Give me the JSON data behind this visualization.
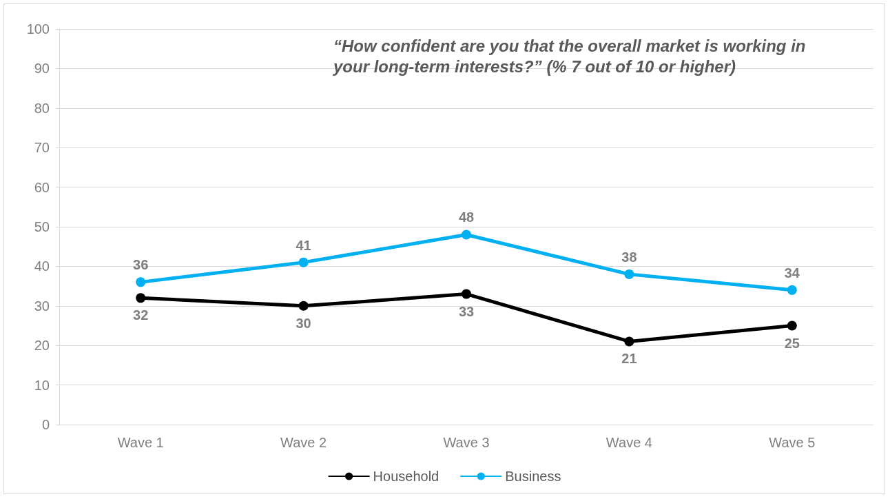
{
  "chart_data": {
    "type": "line",
    "title": "“How confident are you that the overall market is working in your long-term interests?” (% 7 out of 10 or higher)",
    "categories": [
      "Wave 1",
      "Wave 2",
      "Wave 3",
      "Wave 4",
      "Wave 5"
    ],
    "series": [
      {
        "name": "Household",
        "color": "#000000",
        "values": [
          32,
          30,
          33,
          21,
          25
        ]
      },
      {
        "name": "Business",
        "color": "#00b0f0",
        "values": [
          36,
          41,
          48,
          38,
          34
        ]
      }
    ],
    "ylim": [
      0,
      100
    ],
    "yticks": [
      0,
      10,
      20,
      30,
      40,
      50,
      60,
      70,
      80,
      90,
      100
    ],
    "grid": "y",
    "legend": "bottom",
    "marker": "circle",
    "data_labels": true
  }
}
